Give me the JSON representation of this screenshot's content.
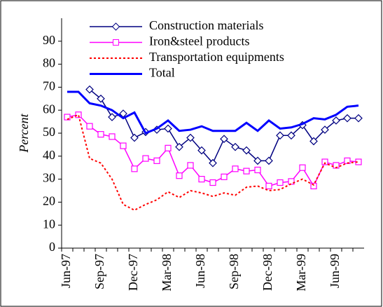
{
  "chart_data": {
    "type": "line",
    "y_label": "Percent",
    "categories": [
      "Jun-97",
      null,
      null,
      "Sep-97",
      null,
      null,
      "Dec-97",
      null,
      null,
      "Mar-98",
      null,
      null,
      "Jun-98",
      null,
      null,
      "Sep-98",
      null,
      null,
      "Dec-98",
      null,
      null,
      "Mar-99",
      null,
      null,
      "Jun-99",
      null,
      null
    ],
    "ylim": [
      0,
      100
    ],
    "yticks": [
      0,
      10,
      20,
      30,
      40,
      50,
      60,
      70,
      80,
      90
    ],
    "grid": false,
    "legend": "top",
    "series": [
      {
        "name": "Construction materials",
        "color": "#000080",
        "marker": "diamond",
        "dash": "solid",
        "width": 1.5,
        "values": [
          null,
          null,
          69,
          65,
          57,
          58.5,
          48,
          50.5,
          51.5,
          52,
          44,
          48,
          42.5,
          37,
          47.5,
          44,
          42.5,
          38,
          38,
          49,
          49,
          53.5,
          46.5,
          51.5,
          55.5,
          56.5,
          56.5
        ]
      },
      {
        "name": "Iron&steel products",
        "color": "#ff00ff",
        "marker": "square",
        "dash": "solid",
        "width": 1.5,
        "values": [
          57,
          58,
          53,
          49.5,
          48.5,
          44.5,
          34.5,
          39,
          38,
          43.5,
          31.5,
          36,
          30,
          28.5,
          31,
          34.5,
          33.5,
          34,
          27,
          28.5,
          29,
          35,
          27,
          37.5,
          36,
          38,
          37.5
        ]
      },
      {
        "name": "Transportation equipments",
        "color": "#ff0000",
        "marker": "none",
        "dash": "dotted",
        "width": 2,
        "values": [
          56,
          58,
          39,
          37,
          30,
          19,
          16.5,
          19,
          21,
          24.5,
          22,
          25,
          24,
          22.5,
          24,
          23,
          26.5,
          27,
          25,
          25.5,
          28,
          30,
          27.5,
          37,
          35,
          37,
          37.5
        ]
      },
      {
        "name": "Total",
        "color": "#0000ff",
        "marker": "none",
        "dash": "solid",
        "width": 3,
        "values": [
          68,
          68,
          63,
          62,
          60,
          56.5,
          59,
          50,
          52,
          55.5,
          51,
          51.5,
          53,
          51,
          51,
          51,
          54.5,
          51,
          55.5,
          52,
          52.5,
          54,
          56.5,
          56,
          58,
          61.5,
          62
        ]
      }
    ]
  }
}
